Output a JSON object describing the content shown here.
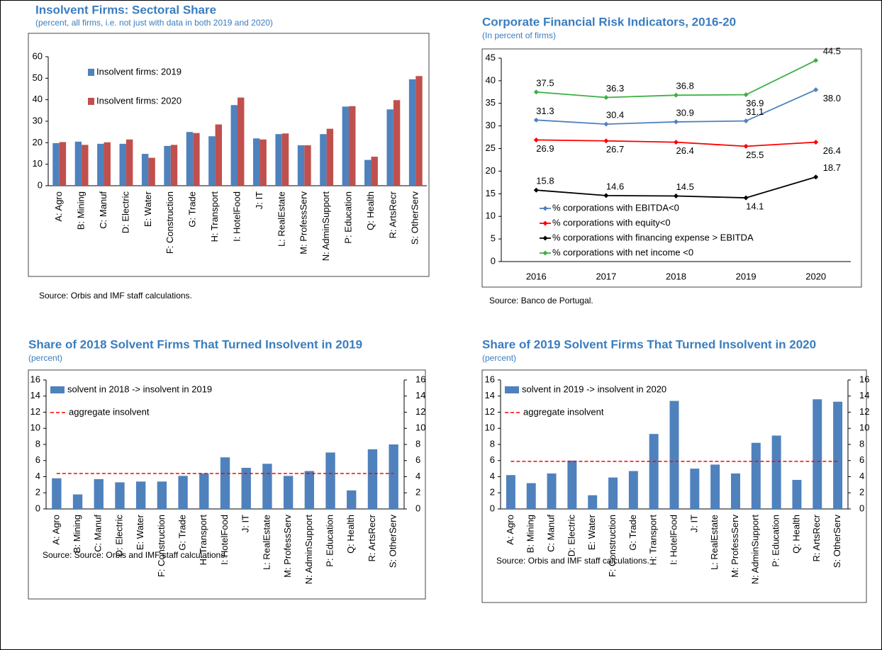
{
  "chart_data": [
    {
      "type": "bar",
      "title": "Insolvent Firms: Sectoral Share",
      "subtitle": "(percent, all firms, i.e. not just with data in both 2019 and 2020)",
      "source": "Source: Orbis and IMF staff calculations.",
      "categories": [
        "A: Agro",
        "B: Mining",
        "C: Manuf",
        "D: Electric",
        "E: Water",
        "F: Construction",
        "G: Trade",
        "H: Transport",
        "I: HotelFood",
        "J: IT",
        "L: RealEstate",
        "M: ProfessServ",
        "N: AdminSupport",
        "P: Education",
        "Q: Health",
        "R: ArtsRecr",
        "S: OtherServ"
      ],
      "series": [
        {
          "name": "Insolvent firms: 2019",
          "color": "#4f81bd",
          "values": [
            19.8,
            20.5,
            19.5,
            19.5,
            14.8,
            18.5,
            25,
            23,
            37.5,
            22,
            24,
            18.8,
            24,
            36.8,
            12,
            35.5,
            49.5
          ]
        },
        {
          "name": "Insolvent firms: 2020",
          "color": "#c0504d",
          "values": [
            20.3,
            19,
            20.2,
            21.5,
            13,
            19,
            24.5,
            28.5,
            41,
            21.5,
            24.3,
            18.8,
            26.5,
            37,
            13.5,
            39.8,
            51
          ]
        }
      ],
      "ylim": [
        0,
        60
      ],
      "yticks": [
        0,
        10,
        20,
        30,
        40,
        50,
        60
      ],
      "legend": "upper left"
    },
    {
      "type": "line",
      "title": "Corporate Financial Risk Indicators, 2016-20",
      "subtitle": "(In percent of firms)",
      "source": "Source: Banco de Portugal.",
      "categories": [
        "2016",
        "2017",
        "2018",
        "2019",
        "2020"
      ],
      "series": [
        {
          "name": "% corporations with EBITDA<0",
          "color": "#4f81bd",
          "values": [
            31.3,
            30.4,
            30.9,
            31.1,
            38.0
          ],
          "value_labels": [
            "31.3",
            "30.4",
            "30.9",
            "31.1",
            "38.0"
          ]
        },
        {
          "name": "% corporations with equity<0",
          "color": "#ff0000",
          "values": [
            26.9,
            26.7,
            26.4,
            25.5,
            26.4
          ],
          "value_labels": [
            "26.9",
            "26.7",
            "26.4",
            "25.5",
            "26.4"
          ]
        },
        {
          "name": "% corporations with financing expense > EBITDA",
          "color": "#000000",
          "values": [
            15.8,
            14.6,
            14.5,
            14.1,
            18.7
          ],
          "value_labels": [
            "15.8",
            "14.6",
            "14.5",
            "14.1",
            "18.7"
          ]
        },
        {
          "name": "% corporations with net income <0",
          "color": "#3cb043",
          "values": [
            37.5,
            36.3,
            36.8,
            36.9,
            44.5
          ],
          "value_labels": [
            "37.5",
            "36.3",
            "36.8",
            "36.9",
            "44.5"
          ]
        }
      ],
      "ylim": [
        0,
        45
      ],
      "yticks": [
        0,
        5,
        10,
        15,
        20,
        25,
        30,
        35,
        40,
        45
      ],
      "legend": "lower left"
    },
    {
      "type": "bar",
      "title": "Share of 2018 Solvent Firms That Turned Insolvent in 2019",
      "subtitle": "(percent)",
      "source": "Source: Source: Orbis and IMF staff calculations.",
      "categories": [
        "A: Agro",
        "B: Mining",
        "C: Manuf",
        "D: Electric",
        "E: Water",
        "F: Construction",
        "G: Trade",
        "H: Transport",
        "I: HotelFood",
        "J: IT",
        "L: RealEstate",
        "M: ProfessServ",
        "N: AdminSupport",
        "P: Education",
        "Q: Health",
        "R: ArtsRecr",
        "S: OtherServ"
      ],
      "series": [
        {
          "name": "solvent in 2018 -> insolvent in 2019",
          "color": "#4f81bd",
          "values": [
            3.8,
            1.8,
            3.7,
            3.3,
            3.4,
            3.4,
            4.1,
            4.4,
            6.4,
            5.1,
            5.6,
            4.1,
            4.7,
            7.0,
            2.3,
            7.4,
            8.0
          ]
        },
        {
          "name": "aggregate insolvent",
          "type": "line",
          "dash": true,
          "color": "#ff0000",
          "values": [
            4.4,
            4.4,
            4.4,
            4.4,
            4.4,
            4.4,
            4.4,
            4.4,
            4.4,
            4.4,
            4.4,
            4.4,
            4.4,
            4.4,
            4.4,
            4.4,
            4.4
          ]
        }
      ],
      "ylim": [
        0,
        16
      ],
      "yticks": [
        0,
        2,
        4,
        6,
        8,
        10,
        12,
        14,
        16
      ],
      "y2lim": [
        0,
        16
      ],
      "y2ticks": [
        0,
        2,
        4,
        6,
        8,
        10,
        12,
        14,
        16
      ],
      "legend": "upper left"
    },
    {
      "type": "bar",
      "title": "Share of 2019 Solvent Firms That Turned Insolvent in 2020",
      "subtitle": "(percent)",
      "source": "Source: Orbis and IMF staff calculations.",
      "categories": [
        "A: Agro",
        "B: Mining",
        "C: Manuf",
        "D: Electric",
        "E: Water",
        "F: Construction",
        "G: Trade",
        "H: Transport",
        "I: HotelFood",
        "J: IT",
        "L: RealEstate",
        "M: ProfessServ",
        "N: AdminSupport",
        "P: Education",
        "Q: Health",
        "R: ArtsRecr",
        "S: OtherServ"
      ],
      "series": [
        {
          "name": "solvent in 2019 -> insolvent in 2020",
          "color": "#4f81bd",
          "values": [
            4.2,
            3.2,
            4.4,
            6.0,
            1.7,
            3.9,
            4.7,
            9.3,
            13.4,
            5.0,
            5.5,
            4.4,
            8.2,
            9.1,
            3.6,
            13.6,
            13.3
          ]
        },
        {
          "name": "aggregate insolvent",
          "type": "line",
          "dash": true,
          "color": "#ff0000",
          "values": [
            5.9,
            5.9,
            5.9,
            5.9,
            5.9,
            5.9,
            5.9,
            5.9,
            5.9,
            5.9,
            5.9,
            5.9,
            5.9,
            5.9,
            5.9,
            5.9,
            5.9
          ]
        }
      ],
      "ylim": [
        0,
        16
      ],
      "yticks": [
        0,
        2,
        4,
        6,
        8,
        10,
        12,
        14,
        16
      ],
      "y2lim": [
        0,
        16
      ],
      "y2ticks": [
        0,
        2,
        4,
        6,
        8,
        10,
        12,
        14,
        16
      ],
      "legend": "upper left"
    }
  ]
}
